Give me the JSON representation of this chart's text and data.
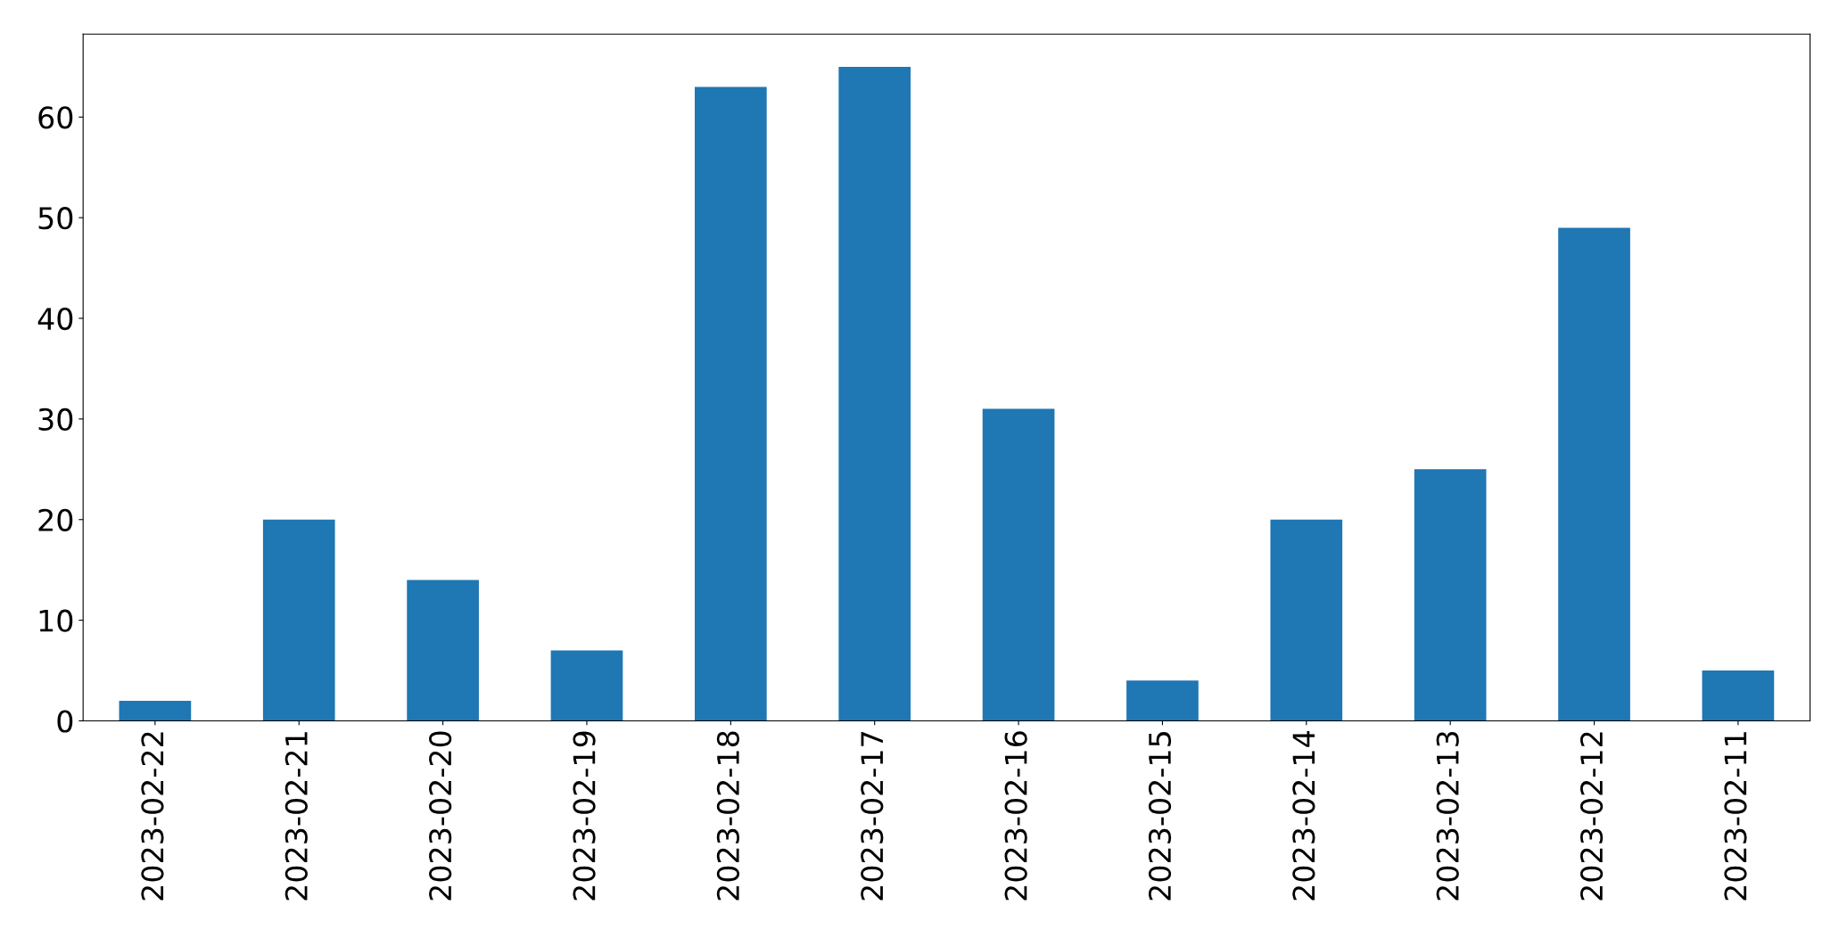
{
  "chart_data": {
    "type": "bar",
    "categories": [
      "2023-02-22",
      "2023-02-21",
      "2023-02-20",
      "2023-02-19",
      "2023-02-18",
      "2023-02-17",
      "2023-02-16",
      "2023-02-15",
      "2023-02-14",
      "2023-02-13",
      "2023-02-12",
      "2023-02-11"
    ],
    "values": [
      2,
      20,
      14,
      7,
      63,
      65,
      31,
      4,
      20,
      25,
      49,
      5
    ],
    "color": "#1f77b4",
    "ylim": [
      0,
      68.25
    ],
    "yticks": [
      0,
      10,
      20,
      30,
      40,
      50,
      60
    ],
    "grid": false
  }
}
